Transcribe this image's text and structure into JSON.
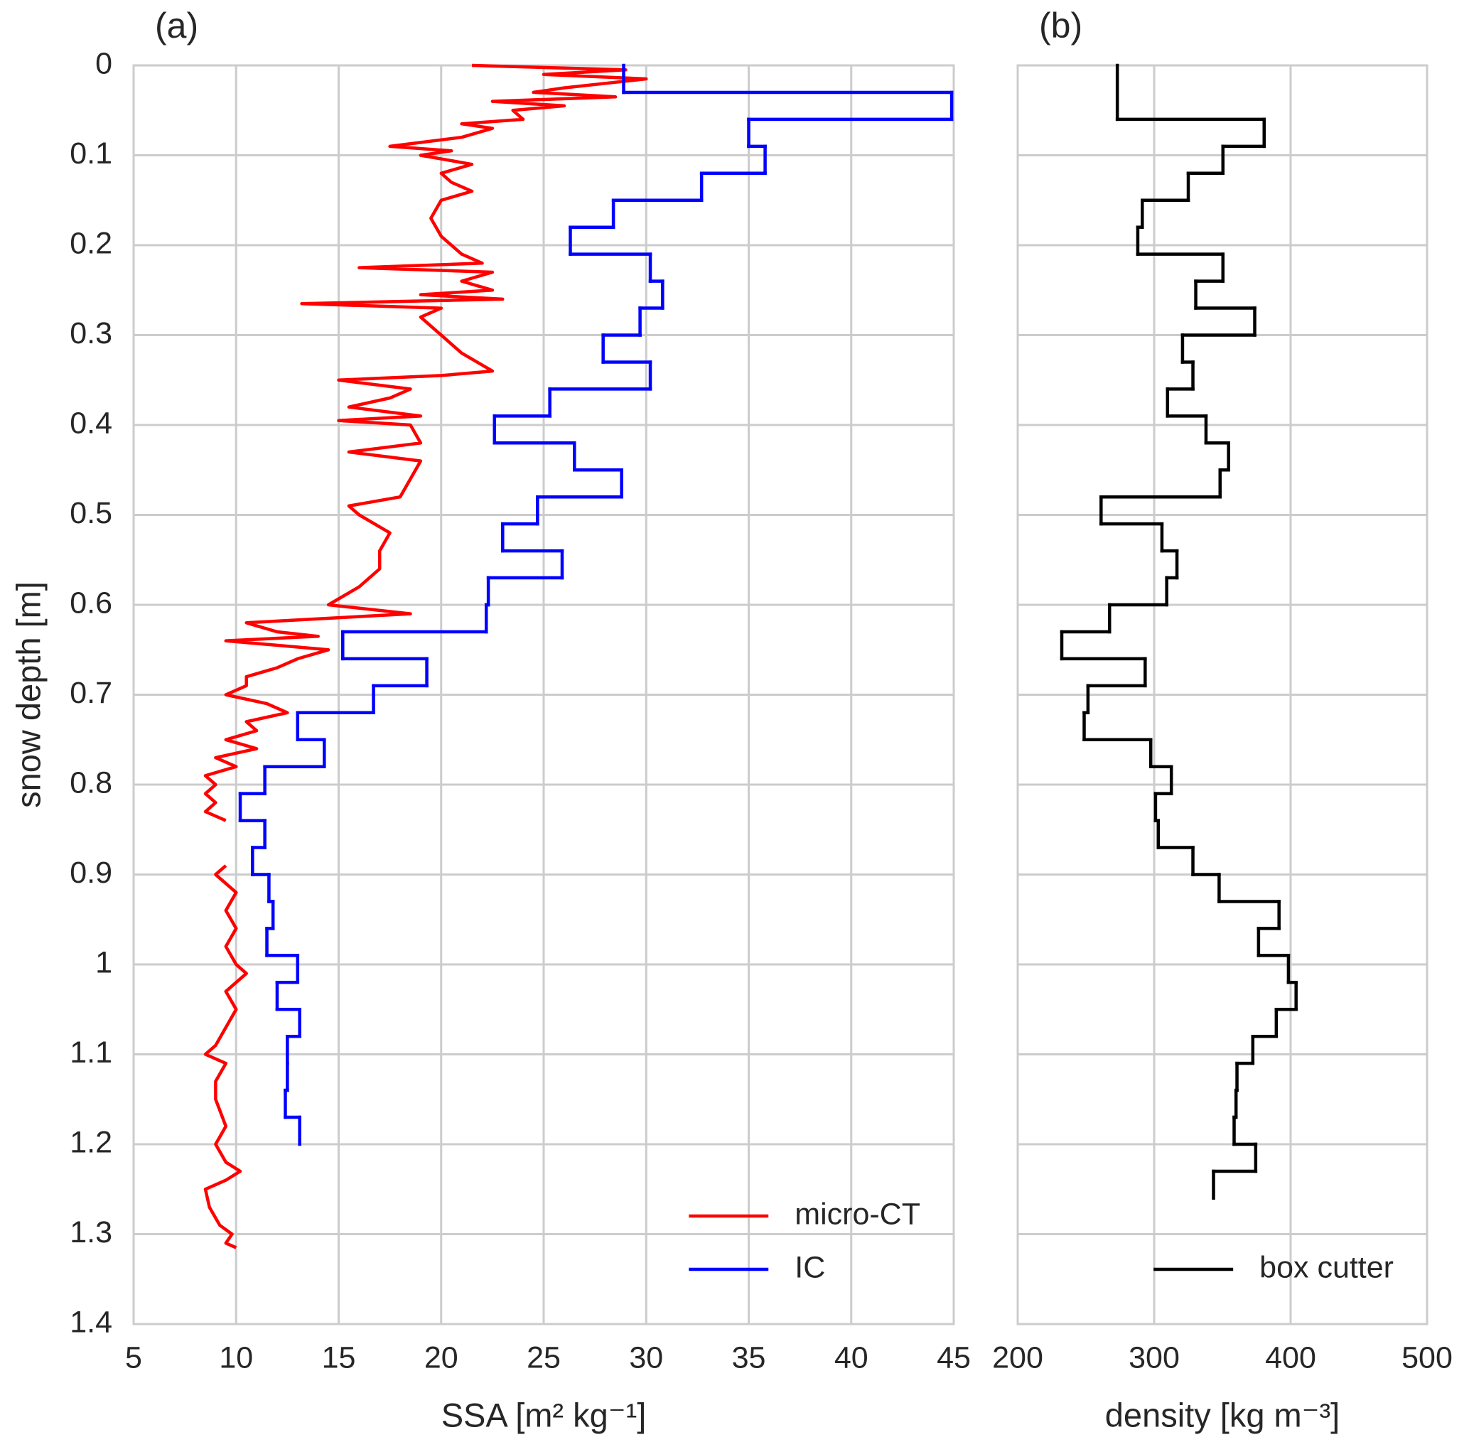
{
  "chart_data": [
    {
      "type": "profile",
      "title": "(a)",
      "xlabel": "SSA [m² kg⁻¹]",
      "ylabel": "snow depth [m]",
      "xlim": [
        5,
        45
      ],
      "xticks": [
        5,
        10,
        15,
        20,
        25,
        30,
        35,
        40,
        45
      ],
      "ylim": [
        0,
        1.4
      ],
      "yticks": [
        0,
        0.1,
        0.2,
        0.3,
        0.4,
        0.5,
        0.6,
        0.7,
        0.8,
        0.9,
        1,
        1.1,
        1.2,
        1.3,
        1.4
      ],
      "y_inverted": true,
      "grid": true,
      "legend": "lower right",
      "series": [
        {
          "name": "micro-CT",
          "color": "#ff0000",
          "type": "line",
          "depth": [
            0,
            0.005,
            0.01,
            0.015,
            0.02,
            0.025,
            0.03,
            0.035,
            0.04,
            0.045,
            0.05,
            0.06,
            0.065,
            0.07,
            0.08,
            0.09,
            0.095,
            0.1,
            0.11,
            0.12,
            0.13,
            0.14,
            0.15,
            0.17,
            0.19,
            0.21,
            0.22,
            0.225,
            0.23,
            0.24,
            0.25,
            0.255,
            0.26,
            0.265,
            0.27,
            0.28,
            0.3,
            0.32,
            0.34,
            0.345,
            0.35,
            0.36,
            0.37,
            0.38,
            0.39,
            0.395,
            0.4,
            0.42,
            0.43,
            0.44,
            0.46,
            0.48,
            0.49,
            0.5,
            0.52,
            0.54,
            0.56,
            0.58,
            0.6,
            0.61,
            0.62,
            0.63,
            0.635,
            0.64,
            0.65,
            0.66,
            0.67,
            0.68,
            0.69,
            0.7,
            0.71,
            0.72,
            0.73,
            0.74,
            0.75,
            0.76,
            0.77,
            0.78,
            0.79,
            0.8,
            0.81,
            0.82,
            0.83,
            0.84,
            null,
            0.89,
            0.9,
            0.92,
            0.94,
            0.96,
            0.98,
            1,
            1.01,
            1.03,
            1.05,
            1.07,
            1.09,
            1.1,
            1.11,
            1.13,
            1.15,
            1.18,
            1.2,
            1.22,
            1.23,
            1.24,
            1.25,
            1.27,
            1.29,
            1.3,
            1.31,
            1.315
          ],
          "values": [
            21.5,
            29,
            25,
            30,
            28,
            26,
            24.5,
            28.5,
            22.5,
            26,
            23.5,
            24,
            21,
            22.5,
            21,
            17.5,
            20.5,
            19,
            21.5,
            20,
            20.5,
            21.5,
            20,
            19.5,
            20,
            21,
            22,
            16,
            22.5,
            21,
            22.5,
            19,
            23,
            13.2,
            20,
            19,
            20,
            21,
            22.5,
            20,
            15,
            18.5,
            17.5,
            15.5,
            19,
            15,
            18.5,
            19,
            15.5,
            19,
            18.5,
            18,
            15.5,
            16,
            17.5,
            17,
            17,
            16,
            14.5,
            18.5,
            10.5,
            12,
            14,
            9.5,
            14.5,
            13,
            12,
            10.5,
            10.5,
            9.5,
            11.5,
            12.5,
            10.5,
            11,
            9.5,
            11,
            9,
            10,
            8.5,
            9,
            8.5,
            9,
            8.5,
            9.5,
            null,
            9.5,
            9,
            10,
            9.5,
            10,
            9.5,
            10,
            10.5,
            9.5,
            10,
            9.5,
            9,
            8.5,
            9.5,
            9,
            9,
            9.5,
            9,
            9.5,
            10.2,
            9.5,
            8.5,
            8.7,
            9.2,
            9.8,
            9.5,
            10
          ]
        },
        {
          "name": "IC",
          "color": "#0000ff",
          "type": "step",
          "edges": [
            0,
            0.03,
            0.06,
            0.09,
            0.12,
            0.15,
            0.18,
            0.21,
            0.24,
            0.27,
            0.3,
            0.33,
            0.36,
            0.39,
            0.42,
            0.45,
            0.48,
            0.51,
            0.54,
            0.57,
            0.6,
            0.63,
            0.66,
            0.69,
            0.72,
            0.75,
            0.78,
            0.81,
            0.84,
            0.87,
            0.9,
            0.93,
            0.96,
            0.99,
            1.02,
            1.05,
            1.08,
            1.11,
            1.14,
            1.17,
            1.2
          ],
          "values": [
            28.9,
            44.9,
            35,
            35.8,
            32.7,
            28.4,
            26.3,
            30.2,
            30.8,
            29.7,
            27.9,
            30.2,
            25.3,
            22.6,
            26.5,
            28.8,
            24.7,
            23,
            25.9,
            22.3,
            22.2,
            15.2,
            19.3,
            16.7,
            13,
            14.3,
            11.4,
            10.2,
            11.4,
            10.8,
            11.6,
            11.8,
            11.5,
            13,
            12,
            13.1,
            12.5,
            12.5,
            12.4,
            13.1
          ]
        }
      ]
    },
    {
      "type": "profile",
      "title": "(b)",
      "xlabel": "density [kg m⁻³]",
      "xlim": [
        200,
        500
      ],
      "xticks": [
        200,
        300,
        400,
        500
      ],
      "ylim": [
        0,
        1.4
      ],
      "yticks": [
        0,
        0.1,
        0.2,
        0.3,
        0.4,
        0.5,
        0.6,
        0.7,
        0.8,
        0.9,
        1,
        1.1,
        1.2,
        1.3,
        1.4
      ],
      "ytick_labels": false,
      "y_inverted": true,
      "grid": true,
      "legend": "lower right",
      "series": [
        {
          "name": "box cutter",
          "color": "#000000",
          "type": "step",
          "edges": [
            0,
            0.06,
            0.09,
            0.12,
            0.15,
            0.18,
            0.21,
            0.24,
            0.27,
            0.3,
            0.33,
            0.36,
            0.39,
            0.42,
            0.45,
            0.48,
            0.51,
            0.54,
            0.57,
            0.6,
            0.63,
            0.66,
            0.69,
            0.72,
            0.75,
            0.78,
            0.81,
            0.84,
            0.87,
            0.9,
            0.93,
            0.96,
            0.99,
            1.02,
            1.05,
            1.08,
            1.11,
            1.14,
            1.17,
            1.2,
            1.23,
            1.26
          ],
          "values": [
            273,
            380.6,
            350.4,
            325,
            291.3,
            288,
            350.4,
            330.5,
            373.7,
            320.8,
            328.4,
            309.8,
            338,
            354.5,
            348.3,
            261.1,
            305.7,
            316.7,
            309.2,
            267.3,
            232.3,
            293.4,
            251.5,
            248.7,
            297.5,
            312.6,
            301,
            303,
            328.4,
            347.6,
            391.5,
            376.5,
            398.4,
            404,
            389.5,
            372.3,
            360.7,
            360,
            358.6,
            374.4,
            343.5
          ]
        }
      ]
    }
  ]
}
